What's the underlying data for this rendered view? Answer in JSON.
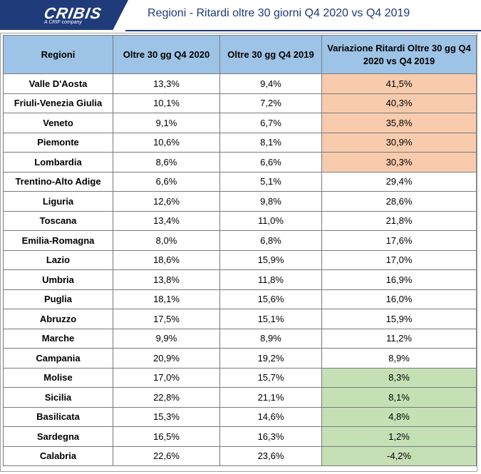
{
  "header": {
    "logo_text": "CRIBIS",
    "logo_subtext": "A CRIF company",
    "title": "Regioni - Ritardi oltre 30 giorni Q4 2020 vs Q4 2019"
  },
  "table": {
    "columns": [
      "Regioni",
      "Oltre 30 gg Q4 2020",
      "Oltre 30 gg Q4 2019",
      "Variazione Ritardi Oltre 30 gg Q4 2020 vs Q4 2019"
    ],
    "highlight_colors": {
      "orange": "#f8cbad",
      "green": "#c5e0b4",
      "header": "#9dc3e6"
    },
    "rows": [
      {
        "region": "Valle D'Aosta",
        "q4_2020": "13,3%",
        "q4_2019": "9,4%",
        "variation": "41,5%",
        "highlight": "orange"
      },
      {
        "region": "Friuli-Venezia Giulia",
        "q4_2020": "10,1%",
        "q4_2019": "7,2%",
        "variation": "40,3%",
        "highlight": "orange"
      },
      {
        "region": "Veneto",
        "q4_2020": "9,1%",
        "q4_2019": "6,7%",
        "variation": "35,8%",
        "highlight": "orange"
      },
      {
        "region": "Piemonte",
        "q4_2020": "10,6%",
        "q4_2019": "8,1%",
        "variation": "30,9%",
        "highlight": "orange"
      },
      {
        "region": "Lombardia",
        "q4_2020": "8,6%",
        "q4_2019": "6,6%",
        "variation": "30,3%",
        "highlight": "orange"
      },
      {
        "region": "Trentino-Alto Adige",
        "q4_2020": "6,6%",
        "q4_2019": "5,1%",
        "variation": "29,4%",
        "highlight": "none"
      },
      {
        "region": "Liguria",
        "q4_2020": "12,6%",
        "q4_2019": "9,8%",
        "variation": "28,6%",
        "highlight": "none"
      },
      {
        "region": "Toscana",
        "q4_2020": "13,4%",
        "q4_2019": "11,0%",
        "variation": "21,8%",
        "highlight": "none"
      },
      {
        "region": "Emilia-Romagna",
        "q4_2020": "8,0%",
        "q4_2019": "6,8%",
        "variation": "17,6%",
        "highlight": "none"
      },
      {
        "region": "Lazio",
        "q4_2020": "18,6%",
        "q4_2019": "15,9%",
        "variation": "17,0%",
        "highlight": "none"
      },
      {
        "region": "Umbria",
        "q4_2020": "13,8%",
        "q4_2019": "11,8%",
        "variation": "16,9%",
        "highlight": "none"
      },
      {
        "region": "Puglia",
        "q4_2020": "18,1%",
        "q4_2019": "15,6%",
        "variation": "16,0%",
        "highlight": "none"
      },
      {
        "region": "Abruzzo",
        "q4_2020": "17,5%",
        "q4_2019": "15,1%",
        "variation": "15,9%",
        "highlight": "none"
      },
      {
        "region": "Marche",
        "q4_2020": "9,9%",
        "q4_2019": "8,9%",
        "variation": "11,2%",
        "highlight": "none"
      },
      {
        "region": "Campania",
        "q4_2020": "20,9%",
        "q4_2019": "19,2%",
        "variation": "8,9%",
        "highlight": "none"
      },
      {
        "region": "Molise",
        "q4_2020": "17,0%",
        "q4_2019": "15,7%",
        "variation": "8,3%",
        "highlight": "green"
      },
      {
        "region": "Sicilia",
        "q4_2020": "22,8%",
        "q4_2019": "21,1%",
        "variation": "8,1%",
        "highlight": "green"
      },
      {
        "region": "Basilicata",
        "q4_2020": "15,3%",
        "q4_2019": "14,6%",
        "variation": "4,8%",
        "highlight": "green"
      },
      {
        "region": "Sardegna",
        "q4_2020": "16,5%",
        "q4_2019": "16,3%",
        "variation": "1,2%",
        "highlight": "green"
      },
      {
        "region": "Calabria",
        "q4_2020": "22,6%",
        "q4_2019": "23,6%",
        "variation": "-4,2%",
        "highlight": "green"
      }
    ]
  }
}
